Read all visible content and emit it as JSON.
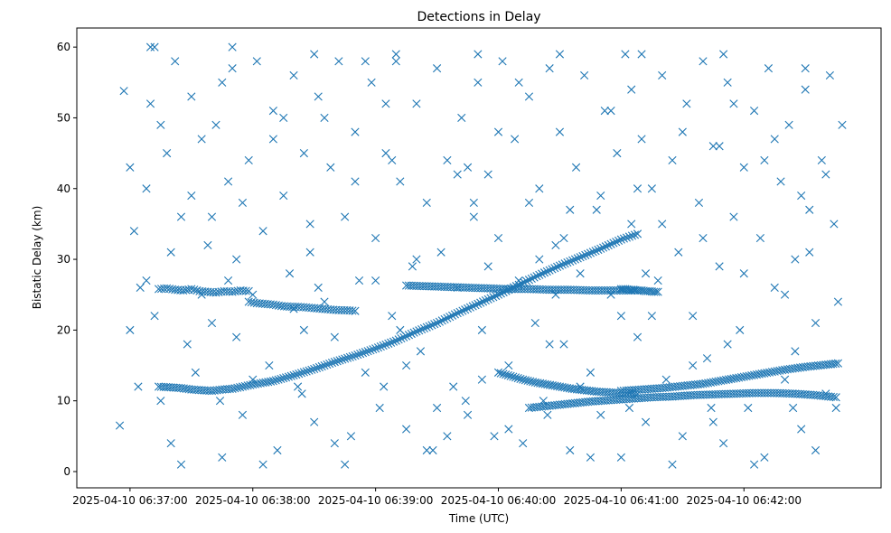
{
  "chart_data": {
    "type": "scatter",
    "title": "Detections in Delay",
    "xlabel": "Time (UTC)",
    "ylabel": "Bistatic Delay (km)",
    "marker": "x",
    "color": "#1f77b4",
    "grid": false,
    "legend": "none",
    "x_unit": "seconds after 2025-04-10 06:37:00 UTC",
    "xlim": [
      -26,
      367
    ],
    "ylim": [
      -2.3,
      62.7
    ],
    "x_ticks": [
      {
        "value": 0,
        "label": "2025-04-10 06:37:00"
      },
      {
        "value": 60,
        "label": "2025-04-10 06:38:00"
      },
      {
        "value": 120,
        "label": "2025-04-10 06:39:00"
      },
      {
        "value": 180,
        "label": "2025-04-10 06:40:00"
      },
      {
        "value": 240,
        "label": "2025-04-10 06:41:00"
      },
      {
        "value": 300,
        "label": "2025-04-10 06:42:00"
      }
    ],
    "y_ticks": [
      {
        "value": 0,
        "label": "0"
      },
      {
        "value": 10,
        "label": "10"
      },
      {
        "value": 20,
        "label": "20"
      },
      {
        "value": 30,
        "label": "30"
      },
      {
        "value": 40,
        "label": "40"
      },
      {
        "value": 50,
        "label": "50"
      },
      {
        "value": 60,
        "label": "60"
      }
    ],
    "series": [
      {
        "description": "rising track",
        "x": [
          14,
          20,
          25,
          30,
          35,
          40,
          45,
          50,
          60,
          70,
          80,
          90,
          100,
          110,
          120,
          130,
          140,
          150,
          160,
          170,
          180,
          190,
          200,
          210,
          220,
          230,
          240,
          248
        ],
        "y": [
          12.0,
          11.9,
          11.8,
          11.6,
          11.5,
          11.4,
          11.6,
          11.7,
          12.3,
          12.8,
          13.6,
          14.5,
          15.5,
          16.4,
          17.4,
          18.5,
          19.8,
          21.0,
          22.4,
          23.7,
          25.0,
          26.4,
          27.8,
          29.1,
          30.3,
          31.5,
          32.8,
          33.6
        ]
      },
      {
        "description": "upper shallow track",
        "x": [
          135,
          145,
          155,
          165,
          175,
          185,
          195,
          205,
          215,
          225,
          235,
          245,
          248
        ],
        "y": [
          26.3,
          26.2,
          26.1,
          26.0,
          25.9,
          25.8,
          25.8,
          25.7,
          25.7,
          25.6,
          25.6,
          25.6,
          25.6
        ]
      },
      {
        "description": "left cluster near 25.5 km",
        "x": [
          14,
          18,
          22,
          26,
          30,
          34,
          38,
          42,
          46,
          50,
          54,
          58
        ],
        "y": [
          25.8,
          25.9,
          25.7,
          25.6,
          25.8,
          25.5,
          25.4,
          25.3,
          25.5,
          25.4,
          25.6,
          25.5
        ]
      },
      {
        "description": "mid descending track",
        "x": [
          58,
          62,
          66,
          70,
          74,
          78,
          82,
          86,
          90,
          94,
          98,
          102,
          106,
          110
        ],
        "y": [
          24.0,
          23.8,
          23.7,
          23.6,
          23.4,
          23.3,
          23.3,
          23.2,
          23.1,
          23.0,
          22.9,
          22.8,
          22.8,
          22.7
        ]
      },
      {
        "description": "falling track",
        "x": [
          180,
          186,
          192,
          198,
          204,
          210,
          216,
          222,
          228,
          234,
          240,
          248
        ],
        "y": [
          14.0,
          13.5,
          13.0,
          12.6,
          12.3,
          12.0,
          11.7,
          11.5,
          11.3,
          11.2,
          11.1,
          11.0
        ]
      },
      {
        "description": "lower right track",
        "x": [
          240,
          250,
          260,
          270,
          280,
          290,
          300,
          310,
          320,
          330,
          340,
          346
        ],
        "y": [
          11.4,
          11.6,
          11.8,
          12.1,
          12.4,
          12.9,
          13.4,
          13.9,
          14.4,
          14.8,
          15.1,
          15.3
        ]
      },
      {
        "description": "lower shallow track",
        "x": [
          195,
          205,
          215,
          225,
          235,
          245,
          255,
          265,
          275,
          285,
          295,
          305,
          315,
          325,
          335,
          345
        ],
        "y": [
          9.0,
          9.3,
          9.6,
          9.9,
          10.1,
          10.3,
          10.5,
          10.6,
          10.8,
          10.9,
          11.0,
          11.1,
          11.1,
          11.0,
          10.8,
          10.5
        ]
      },
      {
        "description": "upper right flat segment",
        "x": [
          240,
          242,
          244,
          246,
          248,
          250,
          252,
          254,
          256,
          258
        ],
        "y": [
          25.8,
          25.8,
          25.7,
          25.7,
          25.6,
          25.6,
          25.5,
          25.5,
          25.4,
          25.4
        ]
      }
    ],
    "noise_points": [
      [
        -5,
        6.5
      ],
      [
        -3,
        53.8
      ],
      [
        0,
        43
      ],
      [
        2,
        34
      ],
      [
        5,
        26
      ],
      [
        8,
        27
      ],
      [
        10,
        52
      ],
      [
        12,
        60
      ],
      [
        15,
        10
      ],
      [
        18,
        45
      ],
      [
        20,
        4
      ],
      [
        22,
        58
      ],
      [
        25,
        36
      ],
      [
        28,
        18
      ],
      [
        30,
        53
      ],
      [
        32,
        14
      ],
      [
        35,
        47
      ],
      [
        38,
        32
      ],
      [
        40,
        21
      ],
      [
        42,
        49
      ],
      [
        45,
        2
      ],
      [
        48,
        41
      ],
      [
        50,
        57
      ],
      [
        52,
        30
      ],
      [
        55,
        8
      ],
      [
        58,
        44
      ],
      [
        60,
        25
      ],
      [
        62,
        58
      ],
      [
        65,
        34
      ],
      [
        68,
        15
      ],
      [
        70,
        51
      ],
      [
        72,
        3
      ],
      [
        75,
        39
      ],
      [
        78,
        28
      ],
      [
        80,
        56
      ],
      [
        82,
        12
      ],
      [
        85,
        45
      ],
      [
        88,
        31
      ],
      [
        90,
        7
      ],
      [
        92,
        53
      ],
      [
        95,
        24
      ],
      [
        98,
        43
      ],
      [
        100,
        19
      ],
      [
        102,
        58
      ],
      [
        105,
        36
      ],
      [
        108,
        5
      ],
      [
        110,
        48
      ],
      [
        112,
        27
      ],
      [
        115,
        14
      ],
      [
        118,
        55
      ],
      [
        120,
        33
      ],
      [
        122,
        9
      ],
      [
        125,
        45
      ],
      [
        128,
        22
      ],
      [
        130,
        58
      ],
      [
        132,
        41
      ],
      [
        135,
        6
      ],
      [
        138,
        29
      ],
      [
        140,
        52
      ],
      [
        142,
        17
      ],
      [
        145,
        38
      ],
      [
        148,
        3
      ],
      [
        150,
        57
      ],
      [
        152,
        31
      ],
      [
        155,
        44
      ],
      [
        158,
        12
      ],
      [
        160,
        26
      ],
      [
        162,
        50
      ],
      [
        165,
        8
      ],
      [
        168,
        36
      ],
      [
        170,
        55
      ],
      [
        172,
        20
      ],
      [
        175,
        42
      ],
      [
        178,
        5
      ],
      [
        180,
        33
      ],
      [
        182,
        58
      ],
      [
        185,
        15
      ],
      [
        188,
        47
      ],
      [
        190,
        27
      ],
      [
        192,
        4
      ],
      [
        195,
        53
      ],
      [
        198,
        21
      ],
      [
        200,
        40
      ],
      [
        202,
        10
      ],
      [
        205,
        57
      ],
      [
        208,
        32
      ],
      [
        210,
        48
      ],
      [
        212,
        18
      ],
      [
        215,
        3
      ],
      [
        218,
        43
      ],
      [
        220,
        28
      ],
      [
        222,
        56
      ],
      [
        225,
        14
      ],
      [
        228,
        37
      ],
      [
        230,
        8
      ],
      [
        232,
        51
      ],
      [
        235,
        25
      ],
      [
        238,
        45
      ],
      [
        240,
        2
      ],
      [
        242,
        59
      ],
      [
        245,
        35
      ],
      [
        248,
        19
      ],
      [
        250,
        47
      ],
      [
        252,
        7
      ],
      [
        255,
        40
      ],
      [
        258,
        27
      ],
      [
        260,
        56
      ],
      [
        262,
        13
      ],
      [
        265,
        44
      ],
      [
        268,
        31
      ],
      [
        270,
        5
      ],
      [
        272,
        52
      ],
      [
        275,
        22
      ],
      [
        278,
        38
      ],
      [
        280,
        58
      ],
      [
        282,
        16
      ],
      [
        285,
        46
      ],
      [
        288,
        29
      ],
      [
        290,
        4
      ],
      [
        292,
        55
      ],
      [
        295,
        36
      ],
      [
        298,
        20
      ],
      [
        300,
        43
      ],
      [
        302,
        9
      ],
      [
        305,
        51
      ],
      [
        308,
        33
      ],
      [
        310,
        2
      ],
      [
        312,
        57
      ],
      [
        315,
        26
      ],
      [
        318,
        41
      ],
      [
        320,
        13
      ],
      [
        322,
        49
      ],
      [
        325,
        30
      ],
      [
        328,
        6
      ],
      [
        330,
        54
      ],
      [
        332,
        37
      ],
      [
        335,
        21
      ],
      [
        338,
        44
      ],
      [
        340,
        11
      ],
      [
        342,
        56
      ],
      [
        344,
        35
      ],
      [
        346,
        24
      ],
      [
        348,
        49
      ],
      [
        30,
        39
      ],
      [
        70,
        47
      ],
      [
        110,
        41
      ],
      [
        150,
        9
      ],
      [
        190,
        55
      ],
      [
        230,
        39
      ],
      [
        270,
        48
      ],
      [
        310,
        44
      ],
      [
        20,
        31
      ],
      [
        60,
        13
      ],
      [
        100,
        4
      ],
      [
        140,
        30
      ],
      [
        180,
        48
      ],
      [
        220,
        12
      ],
      [
        260,
        35
      ],
      [
        300,
        28
      ],
      [
        340,
        42
      ],
      [
        45,
        55
      ],
      [
        85,
        20
      ],
      [
        125,
        52
      ],
      [
        165,
        43
      ],
      [
        205,
        18
      ],
      [
        245,
        54
      ],
      [
        285,
        7
      ],
      [
        325,
        17
      ],
      [
        15,
        49
      ],
      [
        55,
        38
      ],
      [
        95,
        50
      ],
      [
        135,
        15
      ],
      [
        175,
        29
      ],
      [
        215,
        37
      ],
      [
        255,
        22
      ],
      [
        295,
        52
      ],
      [
        335,
        3
      ],
      [
        25,
        1
      ],
      [
        65,
        1
      ],
      [
        105,
        1
      ],
      [
        145,
        3
      ],
      [
        185,
        6
      ],
      [
        225,
        2
      ],
      [
        265,
        1
      ],
      [
        305,
        1
      ],
      [
        10,
        60
      ],
      [
        50,
        60
      ],
      [
        90,
        59
      ],
      [
        130,
        59
      ],
      [
        170,
        59
      ],
      [
        210,
        59
      ],
      [
        250,
        59
      ],
      [
        290,
        59
      ],
      [
        330,
        57
      ],
      [
        8,
        40
      ],
      [
        48,
        27
      ],
      [
        88,
        35
      ],
      [
        128,
        44
      ],
      [
        168,
        38
      ],
      [
        208,
        25
      ],
      [
        248,
        40
      ],
      [
        288,
        46
      ],
      [
        328,
        39
      ],
      [
        12,
        22
      ],
      [
        52,
        19
      ],
      [
        92,
        26
      ],
      [
        132,
        20
      ],
      [
        172,
        13
      ],
      [
        212,
        33
      ],
      [
        252,
        28
      ],
      [
        292,
        18
      ],
      [
        332,
        31
      ],
      [
        4,
        12
      ],
      [
        44,
        10
      ],
      [
        84,
        11
      ],
      [
        124,
        12
      ],
      [
        164,
        10
      ],
      [
        204,
        8
      ],
      [
        244,
        9
      ],
      [
        284,
        9
      ],
      [
        324,
        9
      ],
      [
        0,
        20
      ],
      [
        40,
        36
      ],
      [
        80,
        23
      ],
      [
        120,
        27
      ],
      [
        160,
        42
      ],
      [
        200,
        30
      ],
      [
        240,
        22
      ],
      [
        280,
        33
      ],
      [
        320,
        25
      ],
      [
        35,
        25
      ],
      [
        75,
        50
      ],
      [
        115,
        58
      ],
      [
        155,
        5
      ],
      [
        195,
        38
      ],
      [
        235,
        51
      ],
      [
        275,
        15
      ],
      [
        315,
        47
      ],
      [
        345,
        9
      ]
    ]
  }
}
